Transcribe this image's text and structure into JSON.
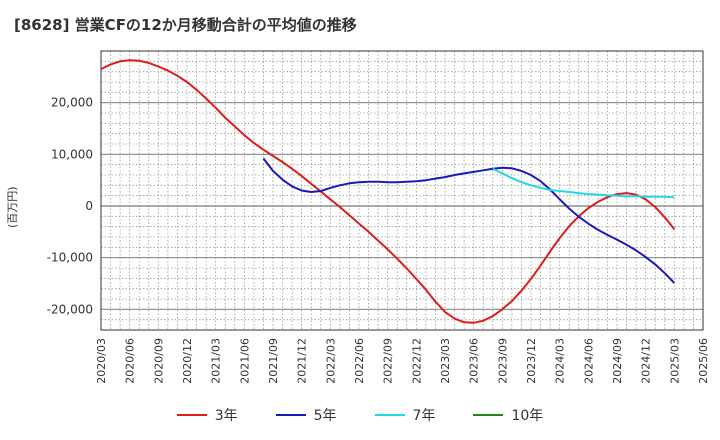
{
  "chart_data": {
    "type": "line",
    "title": "[8628]  営業CFの12か月移動合計の平均値の推移",
    "ylabel": "(百万円)",
    "xlabel": "",
    "ylim": [
      -24000,
      30000
    ],
    "yticks": [
      20000,
      10000,
      0,
      -10000,
      -20000
    ],
    "ytick_labels": [
      "20,000",
      "10,000",
      "0",
      "-10,000",
      "-20,000"
    ],
    "xticks": [
      "2020/03",
      "2020/06",
      "2020/09",
      "2020/12",
      "2021/03",
      "2021/06",
      "2021/09",
      "2021/12",
      "2022/03",
      "2022/06",
      "2022/09",
      "2022/12",
      "2023/03",
      "2023/06",
      "2023/09",
      "2023/12",
      "2024/03",
      "2024/06",
      "2024/09",
      "2024/12",
      "2025/03",
      "2025/06"
    ],
    "grid": true,
    "legend_position": "bottom",
    "series": [
      {
        "name": "3年",
        "color": "#dd1c1c",
        "points": [
          [
            "2020/03",
            26500
          ],
          [
            "2020/04",
            27400
          ],
          [
            "2020/05",
            28000
          ],
          [
            "2020/06",
            28200
          ],
          [
            "2020/07",
            28100
          ],
          [
            "2020/08",
            27700
          ],
          [
            "2020/09",
            27000
          ],
          [
            "2020/10",
            26200
          ],
          [
            "2020/11",
            25200
          ],
          [
            "2020/12",
            24000
          ],
          [
            "2021/01",
            22500
          ],
          [
            "2021/02",
            20800
          ],
          [
            "2021/03",
            19000
          ],
          [
            "2021/04",
            17100
          ],
          [
            "2021/05",
            15400
          ],
          [
            "2021/06",
            13700
          ],
          [
            "2021/07",
            12200
          ],
          [
            "2021/08",
            10900
          ],
          [
            "2021/09",
            9700
          ],
          [
            "2021/10",
            8500
          ],
          [
            "2021/11",
            7200
          ],
          [
            "2021/12",
            5800
          ],
          [
            "2022/01",
            4300
          ],
          [
            "2022/02",
            2800
          ],
          [
            "2022/03",
            1300
          ],
          [
            "2022/04",
            -200
          ],
          [
            "2022/05",
            -1800
          ],
          [
            "2022/06",
            -3400
          ],
          [
            "2022/07",
            -5000
          ],
          [
            "2022/08",
            -6700
          ],
          [
            "2022/09",
            -8400
          ],
          [
            "2022/10",
            -10200
          ],
          [
            "2022/11",
            -12100
          ],
          [
            "2022/12",
            -14100
          ],
          [
            "2023/01",
            -16200
          ],
          [
            "2023/02",
            -18500
          ],
          [
            "2023/03",
            -20500
          ],
          [
            "2023/04",
            -21800
          ],
          [
            "2023/05",
            -22500
          ],
          [
            "2023/06",
            -22600
          ],
          [
            "2023/07",
            -22200
          ],
          [
            "2023/08",
            -21300
          ],
          [
            "2023/09",
            -20000
          ],
          [
            "2023/10",
            -18400
          ],
          [
            "2023/11",
            -16400
          ],
          [
            "2023/12",
            -14100
          ],
          [
            "2024/01",
            -11500
          ],
          [
            "2024/02",
            -8800
          ],
          [
            "2024/03",
            -6200
          ],
          [
            "2024/04",
            -3900
          ],
          [
            "2024/05",
            -2000
          ],
          [
            "2024/06",
            -400
          ],
          [
            "2024/07",
            800
          ],
          [
            "2024/08",
            1700
          ],
          [
            "2024/09",
            2300
          ],
          [
            "2024/10",
            2500
          ],
          [
            "2024/11",
            2200
          ],
          [
            "2024/12",
            1300
          ],
          [
            "2025/01",
            -200
          ],
          [
            "2025/02",
            -2200
          ],
          [
            "2025/03",
            -4500
          ]
        ]
      },
      {
        "name": "5年",
        "color": "#1a1ab8",
        "points": [
          [
            "2021/08",
            9200
          ],
          [
            "2021/09",
            6800
          ],
          [
            "2021/10",
            5100
          ],
          [
            "2021/11",
            3800
          ],
          [
            "2021/12",
            3000
          ],
          [
            "2022/01",
            2700
          ],
          [
            "2022/02",
            2900
          ],
          [
            "2022/03",
            3500
          ],
          [
            "2022/04",
            4000
          ],
          [
            "2022/05",
            4400
          ],
          [
            "2022/06",
            4600
          ],
          [
            "2022/07",
            4700
          ],
          [
            "2022/08",
            4700
          ],
          [
            "2022/09",
            4600
          ],
          [
            "2022/10",
            4600
          ],
          [
            "2022/11",
            4700
          ],
          [
            "2022/12",
            4800
          ],
          [
            "2023/01",
            5000
          ],
          [
            "2023/02",
            5300
          ],
          [
            "2023/03",
            5600
          ],
          [
            "2023/04",
            6000
          ],
          [
            "2023/05",
            6300
          ],
          [
            "2023/06",
            6600
          ],
          [
            "2023/07",
            6900
          ],
          [
            "2023/08",
            7200
          ],
          [
            "2023/09",
            7400
          ],
          [
            "2023/10",
            7300
          ],
          [
            "2023/11",
            6800
          ],
          [
            "2023/12",
            6000
          ],
          [
            "2024/01",
            4800
          ],
          [
            "2024/02",
            3200
          ],
          [
            "2024/03",
            1300
          ],
          [
            "2024/04",
            -500
          ],
          [
            "2024/05",
            -2100
          ],
          [
            "2024/06",
            -3400
          ],
          [
            "2024/07",
            -4600
          ],
          [
            "2024/08",
            -5600
          ],
          [
            "2024/09",
            -6500
          ],
          [
            "2024/10",
            -7500
          ],
          [
            "2024/11",
            -8600
          ],
          [
            "2024/12",
            -9900
          ],
          [
            "2025/01",
            -11300
          ],
          [
            "2025/02",
            -13000
          ],
          [
            "2025/03",
            -14900
          ]
        ]
      },
      {
        "name": "7年",
        "color": "#22d8e6",
        "points": [
          [
            "2023/08",
            7200
          ],
          [
            "2023/09",
            6300
          ],
          [
            "2023/10",
            5400
          ],
          [
            "2023/11",
            4600
          ],
          [
            "2023/12",
            4000
          ],
          [
            "2024/01",
            3500
          ],
          [
            "2024/02",
            3100
          ],
          [
            "2024/03",
            2900
          ],
          [
            "2024/04",
            2700
          ],
          [
            "2024/05",
            2500
          ],
          [
            "2024/06",
            2300
          ],
          [
            "2024/07",
            2200
          ],
          [
            "2024/08",
            2100
          ],
          [
            "2024/09",
            2000
          ],
          [
            "2024/10",
            1900
          ],
          [
            "2024/11",
            1900
          ],
          [
            "2024/12",
            1800
          ],
          [
            "2025/01",
            1800
          ],
          [
            "2025/02",
            1800
          ],
          [
            "2025/03",
            1700
          ]
        ]
      },
      {
        "name": "10年",
        "color": "#1e8a1e",
        "points": []
      }
    ]
  }
}
